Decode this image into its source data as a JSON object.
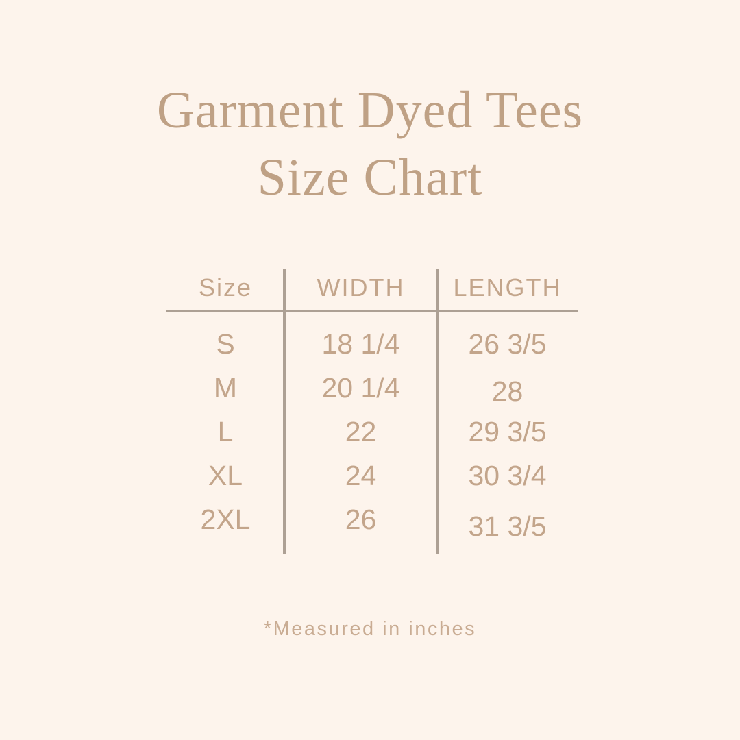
{
  "title": {
    "line1": "Garment Dyed Tees",
    "line2": "Size Chart"
  },
  "table": {
    "headers": [
      "Size",
      "WIDTH",
      "LENGTH"
    ],
    "rows": [
      {
        "size": "S",
        "width": "18 1/4",
        "length": "26 3/5"
      },
      {
        "size": "M",
        "width": "20 1/4",
        "length": "28"
      },
      {
        "size": "L",
        "width": "22",
        "length": "29 3/5"
      },
      {
        "size": "XL",
        "width": "24",
        "length": "30 3/4"
      },
      {
        "size": "2XL",
        "width": "26",
        "length": "31 3/5"
      }
    ]
  },
  "footnote": "*Measured in inches",
  "colors": {
    "bg": "#fdf4ec",
    "title": "#bfa185",
    "tabletext": "#c3a58b",
    "line": "#ada094",
    "footnote": "#c9ac93"
  },
  "chart_data": {
    "type": "table",
    "title": "Garment Dyed Tees Size Chart",
    "columns": [
      "Size",
      "WIDTH",
      "LENGTH"
    ],
    "units": "inches",
    "rows": [
      [
        "S",
        "18 1/4",
        "26 3/5"
      ],
      [
        "M",
        "20 1/4",
        "28"
      ],
      [
        "L",
        "22",
        "29 3/5"
      ],
      [
        "XL",
        "24",
        "30 3/4"
      ],
      [
        "2XL",
        "26",
        "31 3/5"
      ]
    ],
    "note": "*Measured in inches"
  }
}
